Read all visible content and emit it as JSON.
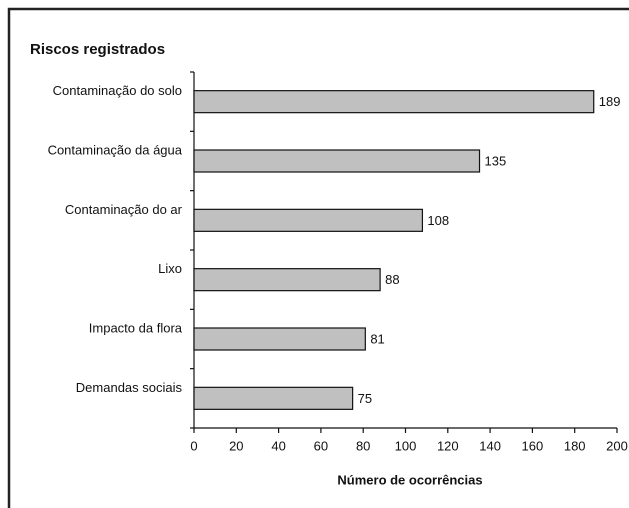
{
  "chart_data": {
    "type": "bar",
    "orientation": "horizontal",
    "title": "Riscos registrados",
    "x_label": "Número de ocorrências",
    "categories": [
      "Contaminação do solo",
      "Contaminação da água",
      "Contaminação do ar",
      "Lixo",
      "Impacto da flora",
      "Demandas sociais"
    ],
    "values": [
      189,
      135,
      108,
      88,
      81,
      75
    ],
    "color": "#c0c0c0",
    "xlim": [
      0,
      200
    ],
    "xticks": [
      0,
      20,
      40,
      60,
      80,
      100,
      120,
      140,
      160,
      180,
      200
    ],
    "grid": false
  }
}
